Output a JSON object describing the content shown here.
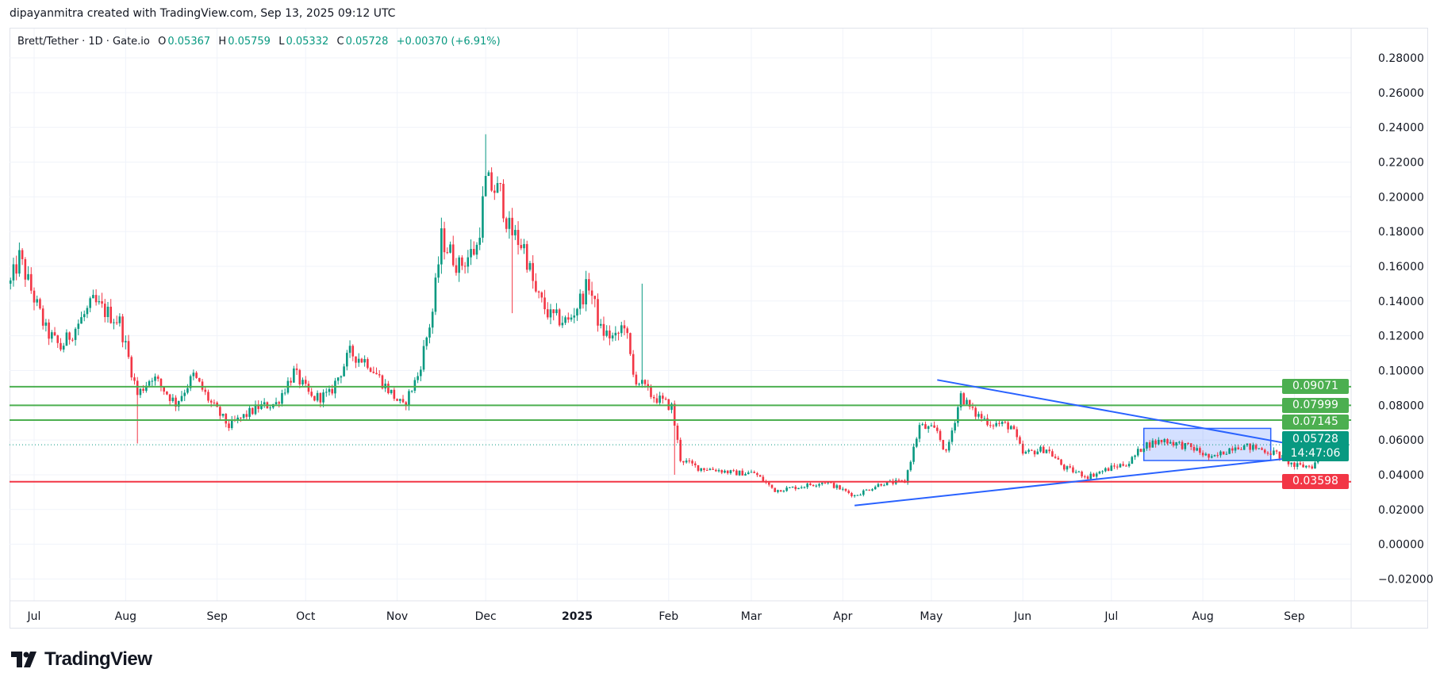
{
  "header": {
    "author_line": "dipayanmitra created with TradingView.com, Sep 13, 2025 09:12 UTC",
    "symbol": "Brett/Tether · 1D · Gate.io",
    "open_label": "O",
    "open": "0.05367",
    "high_label": "H",
    "high": "0.05759",
    "low_label": "L",
    "low": "0.05332",
    "close_label": "C",
    "close": "0.05728",
    "change": "+0.00370 (+6.91%)"
  },
  "badges": {
    "level1": "0.09071",
    "level2": "0.07999",
    "level3": "0.07145",
    "last_price": "0.05728",
    "countdown": "14:47:06",
    "support": "0.03598"
  },
  "logo": {
    "text": "TradingView",
    "icon": "tradingview-logo-icon"
  },
  "colors": {
    "up": "#089981",
    "down": "#f23645",
    "resistance": "#4caf50",
    "support": "#f23645",
    "trendline": "#2962ff",
    "rect_fill": "#2962ff33",
    "grid": "#f0f3fa"
  },
  "chart_data": {
    "type": "candlestick",
    "title": "Brett/Tether · 1D · Gate.io",
    "ylim": [
      -0.03,
      0.29
    ],
    "y_ticks": [
      "0.28000",
      "0.26000",
      "0.24000",
      "0.22000",
      "0.20000",
      "0.18000",
      "0.16000",
      "0.14000",
      "0.12000",
      "0.10000",
      "0.08000",
      "0.06000",
      "0.04000",
      "0.02000",
      "0.00000",
      "−0.02000"
    ],
    "y_tick_values": [
      0.28,
      0.26,
      0.24,
      0.22,
      0.2,
      0.18,
      0.16,
      0.14,
      0.12,
      0.1,
      0.08,
      0.06,
      0.04,
      0.02,
      0.0,
      -0.02
    ],
    "x_ticks": [
      {
        "date": "2024-07-01",
        "label": "Jul"
      },
      {
        "date": "2024-08-01",
        "label": "Aug"
      },
      {
        "date": "2024-09-01",
        "label": "Sep"
      },
      {
        "date": "2024-10-01",
        "label": "Oct"
      },
      {
        "date": "2024-11-01",
        "label": "Nov"
      },
      {
        "date": "2024-12-01",
        "label": "Dec"
      },
      {
        "date": "2025-01-01",
        "label": "2025",
        "bold": true
      },
      {
        "date": "2025-02-01",
        "label": "Feb"
      },
      {
        "date": "2025-03-01",
        "label": "Mar"
      },
      {
        "date": "2025-04-01",
        "label": "Apr"
      },
      {
        "date": "2025-05-01",
        "label": "May"
      },
      {
        "date": "2025-06-01",
        "label": "Jun"
      },
      {
        "date": "2025-07-01",
        "label": "Jul"
      },
      {
        "date": "2025-08-01",
        "label": "Aug"
      },
      {
        "date": "2025-09-01",
        "label": "Sep"
      }
    ],
    "grid": true,
    "approx_close_path": [
      [
        "2024-06-23",
        0.15
      ],
      [
        "2024-06-26",
        0.165
      ],
      [
        "2024-07-05",
        0.123
      ],
      [
        "2024-07-10",
        0.113
      ],
      [
        "2024-07-21",
        0.139
      ],
      [
        "2024-07-30",
        0.128
      ],
      [
        "2024-08-05",
        0.086
      ],
      [
        "2024-08-10",
        0.097
      ],
      [
        "2024-08-18",
        0.081
      ],
      [
        "2024-08-24",
        0.097
      ],
      [
        "2024-08-30",
        0.081
      ],
      [
        "2024-09-05",
        0.068
      ],
      [
        "2024-09-15",
        0.079
      ],
      [
        "2024-09-21",
        0.081
      ],
      [
        "2024-09-27",
        0.099
      ],
      [
        "2024-10-03",
        0.084
      ],
      [
        "2024-10-09",
        0.086
      ],
      [
        "2024-10-16",
        0.11
      ],
      [
        "2024-10-22",
        0.105
      ],
      [
        "2024-10-28",
        0.091
      ],
      [
        "2024-11-03",
        0.079
      ],
      [
        "2024-11-08",
        0.097
      ],
      [
        "2024-11-13",
        0.134
      ],
      [
        "2024-11-16",
        0.176
      ],
      [
        "2024-11-22",
        0.16
      ],
      [
        "2024-11-28",
        0.171
      ],
      [
        "2024-12-01",
        0.208
      ],
      [
        "2024-12-06",
        0.202
      ],
      [
        "2024-12-09",
        0.181
      ],
      [
        "2024-12-14",
        0.171
      ],
      [
        "2024-12-18",
        0.144
      ],
      [
        "2024-12-23",
        0.131
      ],
      [
        "2024-12-29",
        0.128
      ],
      [
        "2025-01-05",
        0.15
      ],
      [
        "2025-01-09",
        0.123
      ],
      [
        "2025-01-14",
        0.118
      ],
      [
        "2025-01-17",
        0.128
      ],
      [
        "2025-01-20",
        0.097
      ],
      [
        "2025-01-26",
        0.086
      ],
      [
        "2025-02-02",
        0.079
      ],
      [
        "2025-02-05",
        0.049
      ],
      [
        "2025-02-11",
        0.044
      ],
      [
        "2025-02-17",
        0.043
      ],
      [
        "2025-02-23",
        0.041
      ],
      [
        "2025-03-02",
        0.041
      ],
      [
        "2025-03-09",
        0.031
      ],
      [
        "2025-03-17",
        0.033
      ],
      [
        "2025-03-26",
        0.036
      ],
      [
        "2025-04-05",
        0.028
      ],
      [
        "2025-04-14",
        0.035
      ],
      [
        "2025-04-22",
        0.036
      ],
      [
        "2025-04-27",
        0.068
      ],
      [
        "2025-05-03",
        0.065
      ],
      [
        "2025-05-06",
        0.052
      ],
      [
        "2025-05-11",
        0.086
      ],
      [
        "2025-05-15",
        0.076
      ],
      [
        "2025-05-21",
        0.07
      ],
      [
        "2025-05-28",
        0.068
      ],
      [
        "2025-06-01",
        0.052
      ],
      [
        "2025-06-09",
        0.055
      ],
      [
        "2025-06-15",
        0.044
      ],
      [
        "2025-06-23",
        0.039
      ],
      [
        "2025-07-01",
        0.044
      ],
      [
        "2025-07-07",
        0.047
      ],
      [
        "2025-07-12",
        0.057
      ],
      [
        "2025-07-19",
        0.06
      ],
      [
        "2025-07-29",
        0.055
      ],
      [
        "2025-08-04",
        0.049
      ],
      [
        "2025-08-12",
        0.057
      ],
      [
        "2025-08-20",
        0.055
      ],
      [
        "2025-08-26",
        0.052
      ],
      [
        "2025-09-01",
        0.045
      ],
      [
        "2025-09-07",
        0.045
      ],
      [
        "2025-09-12",
        0.0537
      ],
      [
        "2025-09-13",
        0.05728
      ]
    ],
    "notable_wicks": [
      {
        "date": "2024-08-05",
        "low": 0.058
      },
      {
        "date": "2024-12-01",
        "high": 0.236
      },
      {
        "date": "2024-12-10",
        "low": 0.133
      },
      {
        "date": "2025-01-23",
        "high": 0.15
      },
      {
        "date": "2025-02-03",
        "low": 0.04
      }
    ],
    "last_candle": {
      "date": "2025-09-13",
      "open": 0.05367,
      "high": 0.05759,
      "low": 0.05332,
      "close": 0.05728
    },
    "drawings": {
      "horizontal_levels": [
        {
          "price": 0.09071,
          "color": "#4caf50"
        },
        {
          "price": 0.07999,
          "color": "#4caf50"
        },
        {
          "price": 0.07145,
          "color": "#4caf50"
        },
        {
          "price": 0.03598,
          "color": "#f23645"
        }
      ],
      "last_price_line": 0.05728,
      "trendlines": [
        {
          "from": [
            "2025-05-03",
            0.0946
          ],
          "to": [
            "2025-08-29",
            0.0582
          ]
        },
        {
          "from": [
            "2025-04-05",
            0.0223
          ],
          "to": [
            "2025-08-29",
            0.0492
          ]
        }
      ],
      "rectangle": {
        "from": [
          "2025-07-12",
          0.0667
        ],
        "to": [
          "2025-08-24",
          0.0482
        ]
      }
    }
  }
}
